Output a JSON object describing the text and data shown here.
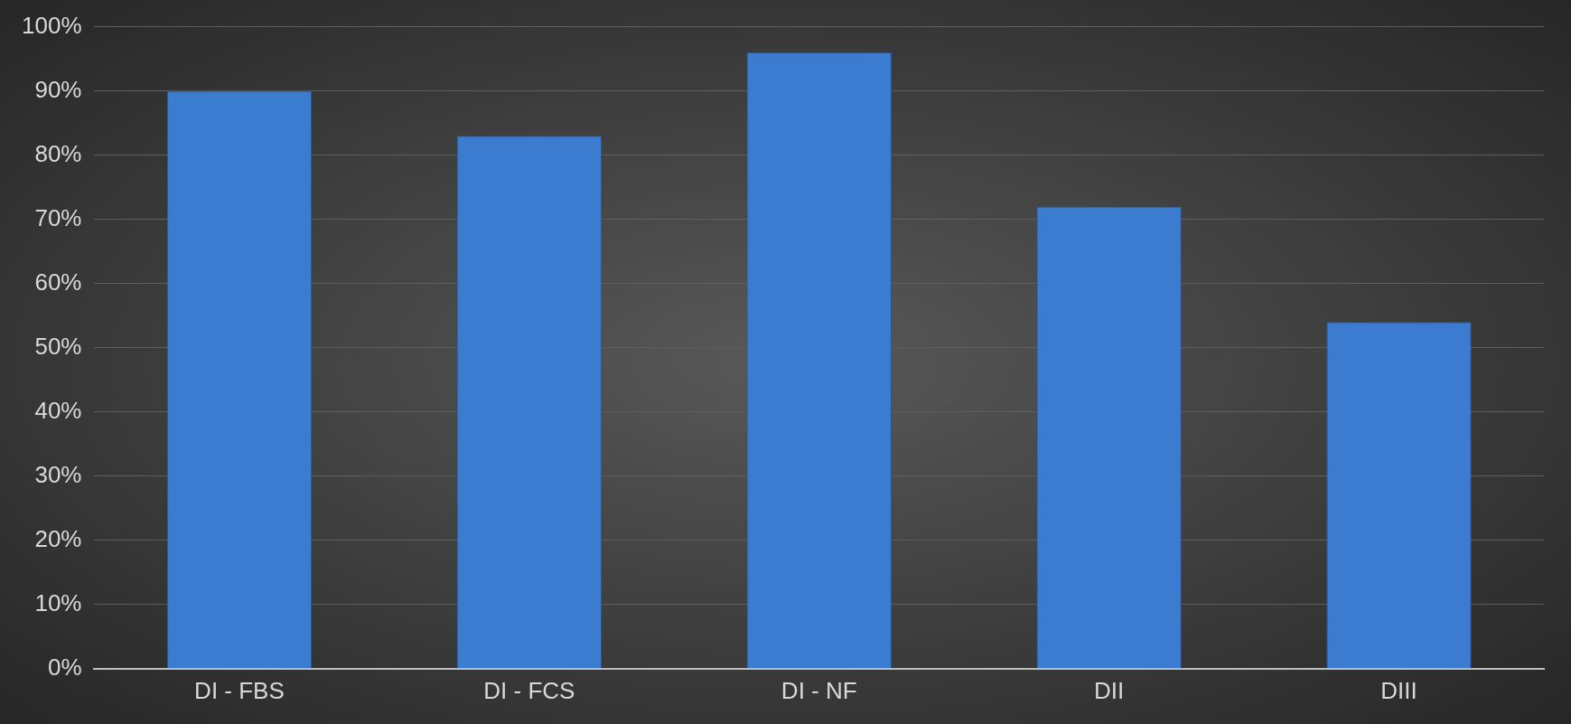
{
  "chart_data": {
    "type": "bar",
    "categories": [
      "DI - FBS",
      "DI - FCS",
      "DI - NF",
      "DII",
      "DIII"
    ],
    "values": [
      90,
      83,
      96,
      72,
      54
    ],
    "color": "#3b7bd0",
    "ylim": [
      0,
      100
    ],
    "yticks": [
      {
        "value": 0,
        "label": "0%"
      },
      {
        "value": 10,
        "label": "10%"
      },
      {
        "value": 20,
        "label": "20%"
      },
      {
        "value": 30,
        "label": "30%"
      },
      {
        "value": 40,
        "label": "40%"
      },
      {
        "value": 50,
        "label": "50%"
      },
      {
        "value": 60,
        "label": "60%"
      },
      {
        "value": 70,
        "label": "70%"
      },
      {
        "value": 80,
        "label": "80%"
      },
      {
        "value": 90,
        "label": "90%"
      },
      {
        "value": 100,
        "label": "100%"
      }
    ],
    "grid": "y",
    "legend": false
  }
}
